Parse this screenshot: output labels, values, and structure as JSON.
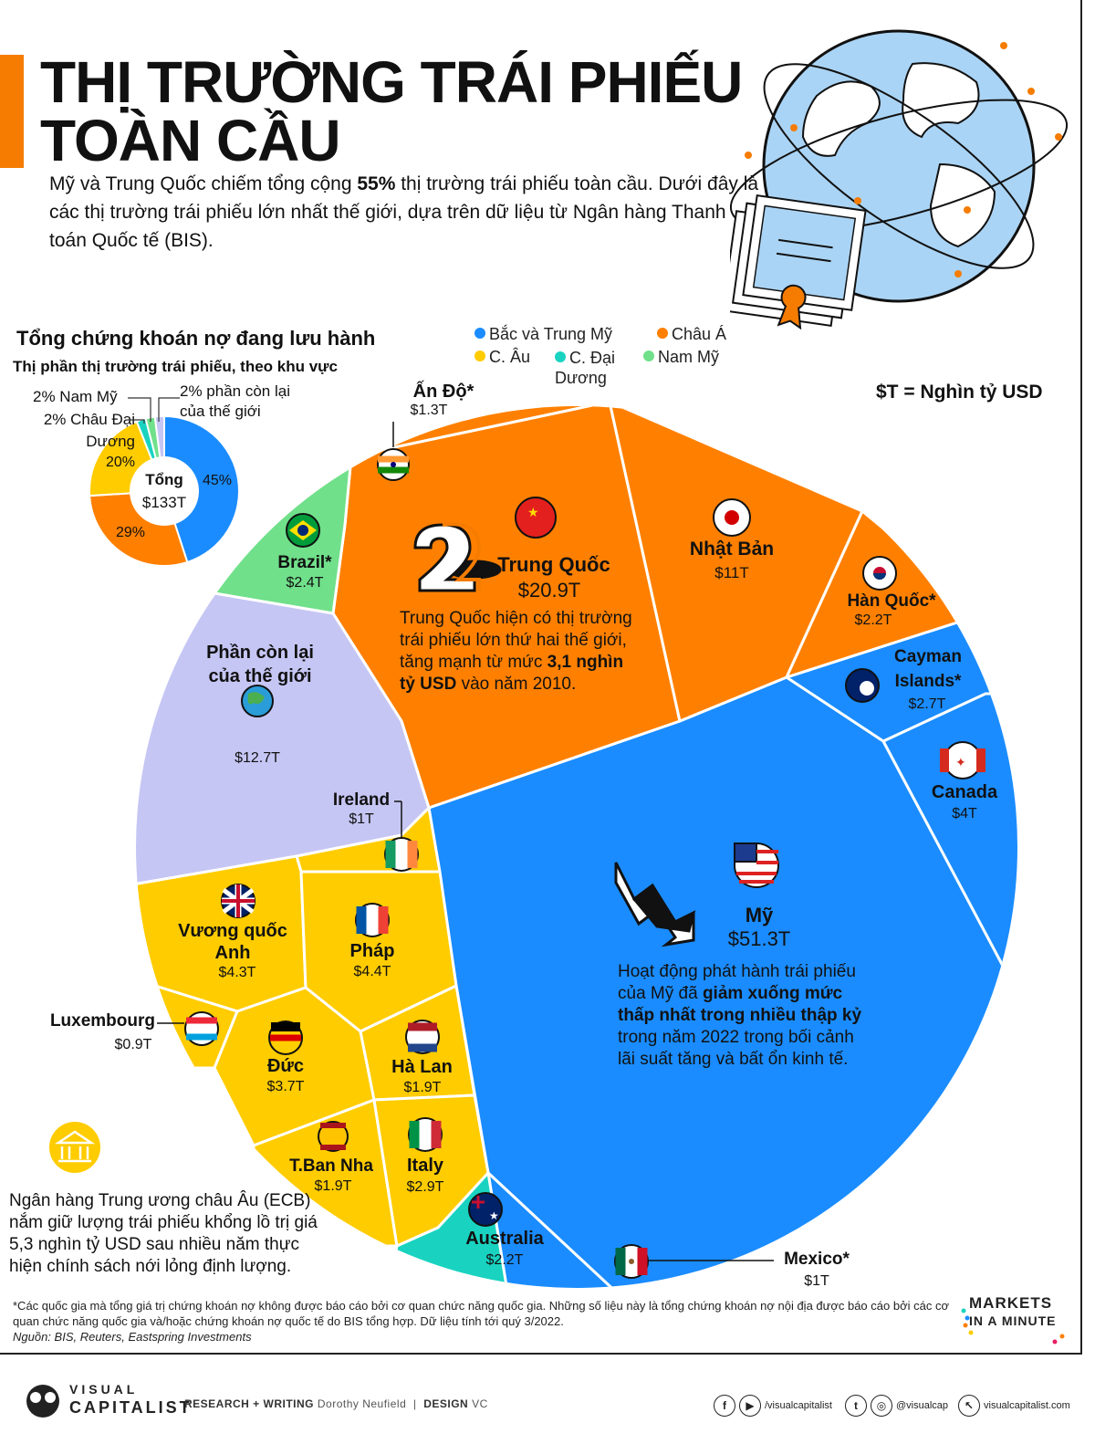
{
  "header": {
    "title_line1": "THỊ TRƯỜNG TRÁI PHIẾU",
    "title_line2": "TOÀN CẦU",
    "subtitle_pre": "Mỹ và Trung Quốc chiếm tổng cộng ",
    "subtitle_bold": "55%",
    "subtitle_post": " thị trường trái phiếu toàn cầu. Dưới đây là các thị trường trái phiếu lớn nhất thế giới, dựa trên dữ liệu từ Ngân hàng Thanh toán Quốc tế (BIS)."
  },
  "legend": {
    "items": [
      {
        "label": "Bắc và Trung Mỹ",
        "color": "#1a8cff"
      },
      {
        "label": "Châu Á",
        "color": "#ff8000"
      },
      {
        "label": "C. Âu",
        "color": "#ffcc00"
      },
      {
        "label": "C. Đại Dương",
        "color": "#19d3c0"
      },
      {
        "label": "Nam Mỹ",
        "color": "#70e08a"
      }
    ],
    "unit_note": "$T = Nghìn tỷ USD"
  },
  "chart_data": [
    {
      "type": "pie",
      "title": "Tổng chứng khoán nợ đang lưu hành",
      "subtitle": "Thị phần thị trường trái phiếu, theo khu vực",
      "center_label": "Tổng",
      "center_value": "$133T",
      "slices": [
        {
          "name": "Bắc và Trung Mỹ",
          "value": 45,
          "label": "45%",
          "color": "#1a8cff"
        },
        {
          "name": "Châu Á",
          "value": 29,
          "label": "29%",
          "color": "#ff8000"
        },
        {
          "name": "C. Âu",
          "value": 20,
          "label": "20%",
          "color": "#ffcc00"
        },
        {
          "name": "C. Đại Dương",
          "value": 2,
          "label": "2% Châu Đại Dương",
          "color": "#19d3c0"
        },
        {
          "name": "Nam Mỹ",
          "value": 2,
          "label": "2% Nam Mỹ",
          "color": "#70e08a"
        },
        {
          "name": "Phần còn lại của thế giới",
          "value": 2,
          "label": "2% phần còn lại của thế giới",
          "color": "#c6c6f5"
        }
      ]
    },
    {
      "type": "voronoi-treemap",
      "unit": "$T = Nghìn tỷ USD",
      "cells": [
        {
          "name": "Mỹ",
          "value": 51.3,
          "label": "$51.3T",
          "region": "Bắc và Trung Mỹ"
        },
        {
          "name": "Trung Quốc",
          "value": 20.9,
          "label": "$20.9T",
          "region": "Châu Á"
        },
        {
          "name": "Phần còn lại của thế giới",
          "value": 12.7,
          "label": "$12.7T",
          "region": "Khác"
        },
        {
          "name": "Nhật Bản",
          "value": 11,
          "label": "$11T",
          "region": "Châu Á"
        },
        {
          "name": "Pháp",
          "value": 4.4,
          "label": "$4.4T",
          "region": "C. Âu"
        },
        {
          "name": "Vương quốc Anh",
          "value": 4.3,
          "label": "$4.3T",
          "region": "C. Âu"
        },
        {
          "name": "Canada",
          "value": 4,
          "label": "$4T",
          "region": "Bắc và Trung Mỹ"
        },
        {
          "name": "Đức",
          "value": 3.7,
          "label": "$3.7T",
          "region": "C. Âu"
        },
        {
          "name": "Italy",
          "value": 2.9,
          "label": "$2.9T",
          "region": "C. Âu"
        },
        {
          "name": "Cayman Islands*",
          "value": 2.7,
          "label": "$2.7T",
          "region": "Bắc và Trung Mỹ"
        },
        {
          "name": "Brazil*",
          "value": 2.4,
          "label": "$2.4T",
          "region": "Nam Mỹ"
        },
        {
          "name": "Hàn Quốc*",
          "value": 2.2,
          "label": "$2.2T",
          "region": "Châu Á"
        },
        {
          "name": "Australia",
          "value": 2.2,
          "label": "$2.2T",
          "region": "C. Đại Dương"
        },
        {
          "name": "Hà Lan",
          "value": 1.9,
          "label": "$1.9T",
          "region": "C. Âu"
        },
        {
          "name": "T.Ban Nha",
          "value": 1.9,
          "label": "$1.9T",
          "region": "C. Âu"
        },
        {
          "name": "Ấn Độ*",
          "value": 1.3,
          "label": "$1.3T",
          "region": "Châu Á"
        },
        {
          "name": "Ireland",
          "value": 1,
          "label": "$1T",
          "region": "C. Âu"
        },
        {
          "name": "Mexico*",
          "value": 1,
          "label": "$1T",
          "region": "Bắc và Trung Mỹ"
        },
        {
          "name": "Luxembourg",
          "value": 0.9,
          "label": "$0.9T",
          "region": "C. Âu"
        }
      ]
    }
  ],
  "labels": {
    "us_name": "Mỹ",
    "us_value": "$51.3T",
    "cn_name": "Trung Quốc",
    "cn_value": "$20.9T",
    "jp_name": "Nhật Bản",
    "jp_value": "$11T",
    "kr_name": "Hàn Quốc*",
    "kr_value": "$2.2T",
    "in_name": "Ấn Độ*",
    "in_value": "$1.3T",
    "br_name": "Brazil*",
    "br_value": "$2.4T",
    "row_name_1": "Phần còn lại",
    "row_name_2": "của thế giới",
    "row_value": "$12.7T",
    "ky_name_1": "Cayman",
    "ky_name_2": "Islands*",
    "ky_value": "$2.7T",
    "ca_name": "Canada",
    "ca_value": "$4T",
    "ie_name": "Ireland",
    "ie_value": "$1T",
    "gb_name_1": "Vương quốc",
    "gb_name_2": "Anh",
    "gb_value": "$4.3T",
    "fr_name": "Pháp",
    "fr_value": "$4.4T",
    "lu_name": "Luxembourg",
    "lu_value": "$0.9T",
    "de_name": "Đức",
    "de_value": "$3.7T",
    "nl_name": "Hà Lan",
    "nl_value": "$1.9T",
    "es_name": "T.Ban Nha",
    "es_value": "$1.9T",
    "it_name": "Italy",
    "it_value": "$2.9T",
    "au_name": "Australia",
    "au_value": "$2.2T",
    "mx_name": "Mexico*",
    "mx_value": "$1T"
  },
  "notes": {
    "china_l1": "Trung Quốc hiện có thị trường",
    "china_l2": "trái phiếu lớn thứ hai thế giới,",
    "china_l3_pre": "tăng mạnh từ mức ",
    "china_l3_bold": "3,1 nghìn",
    "china_l4_bold": "tỷ USD",
    "china_l4_post": " vào năm 2010.",
    "us_l1": "Hoạt động phát hành trái phiếu",
    "us_l2_pre": "của Mỹ đã ",
    "us_l2_bold": "giảm xuống mức",
    "us_l3_bold": "thấp nhất trong nhiều thập kỷ",
    "us_l4": "trong năm 2022 trong bối cảnh",
    "us_l5": "lãi suất tăng và bất ổn kinh tế.",
    "ecb_l1": "Ngân hàng Trung ương châu Âu (ECB)",
    "ecb_l2": "nắm giữ lượng trái phiếu khổng lồ trị giá",
    "ecb_l3": "5,3 nghìn tỷ USD sau nhiều năm thực",
    "ecb_l4": "hiện chính sách nới lỏng định lượng."
  },
  "footer": {
    "footnote": "*Các quốc gia mà tổng giá trị chứng khoán nợ không được báo cáo bởi cơ quan chức năng quốc gia. Những số liệu này là tổng chứng khoán nợ nội địa được báo cáo bởi các cơ quan chức năng quốc gia và/hoặc chứng khoán nợ quốc tế do BIS tổng hợp. Dữ liệu tính tới quý 3/2022.",
    "source": "Nguồn: BIS, Reuters, Eastspring Investments",
    "mim_l1": "MARKETS",
    "mim_l2": "IN A MINUTE"
  },
  "brand": {
    "logo_top": "VISUAL",
    "logo_bottom": "CAPITALIST",
    "research_label": "RESEARCH + WRITING",
    "research_name": "Dorothy Neufield",
    "design_label": "DESIGN",
    "design_name": "VC",
    "fb_handle": "/visualcapitalist",
    "tw_handle": "@visualcap",
    "site": "visualcapitalist.com"
  },
  "colors": {
    "americas": "#1a8cff",
    "asia": "#ff8000",
    "europe": "#ffcc00",
    "oceania": "#19d3c0",
    "south_america": "#70e08a",
    "rest": "#c6c6f5",
    "accent": "#f57c00"
  }
}
